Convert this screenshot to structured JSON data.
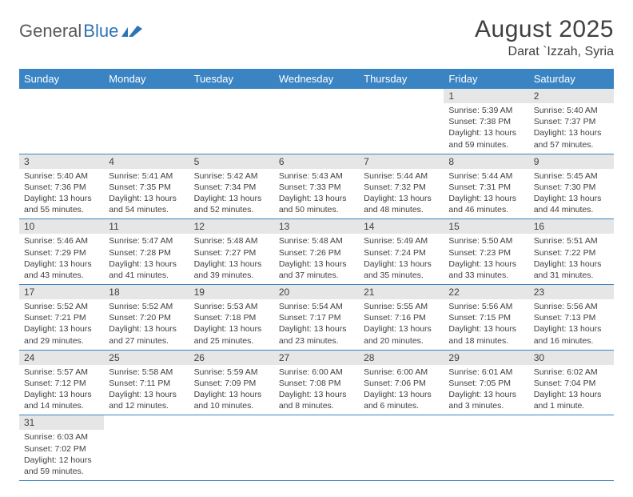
{
  "logo": {
    "word1": "General",
    "word2": "Blue"
  },
  "title": "August 2025",
  "location": "Darat `Izzah, Syria",
  "colors": {
    "header_bg": "#3a84c4",
    "header_text": "#ffffff",
    "daynum_bg": "#e6e6e6",
    "text": "#404040",
    "border": "#3a84c4",
    "logo_gray": "#5a5a5a",
    "logo_blue": "#2e74b5",
    "background": "#ffffff"
  },
  "typography": {
    "title_fontsize": 30,
    "location_fontsize": 16,
    "weekday_fontsize": 13,
    "daynum_fontsize": 12,
    "content_fontsize": 10.5
  },
  "weekdays": [
    "Sunday",
    "Monday",
    "Tuesday",
    "Wednesday",
    "Thursday",
    "Friday",
    "Saturday"
  ],
  "weeks": [
    [
      null,
      null,
      null,
      null,
      null,
      {
        "n": "1",
        "sunrise": "Sunrise: 5:39 AM",
        "sunset": "Sunset: 7:38 PM",
        "daylight": "Daylight: 13 hours and 59 minutes."
      },
      {
        "n": "2",
        "sunrise": "Sunrise: 5:40 AM",
        "sunset": "Sunset: 7:37 PM",
        "daylight": "Daylight: 13 hours and 57 minutes."
      }
    ],
    [
      {
        "n": "3",
        "sunrise": "Sunrise: 5:40 AM",
        "sunset": "Sunset: 7:36 PM",
        "daylight": "Daylight: 13 hours and 55 minutes."
      },
      {
        "n": "4",
        "sunrise": "Sunrise: 5:41 AM",
        "sunset": "Sunset: 7:35 PM",
        "daylight": "Daylight: 13 hours and 54 minutes."
      },
      {
        "n": "5",
        "sunrise": "Sunrise: 5:42 AM",
        "sunset": "Sunset: 7:34 PM",
        "daylight": "Daylight: 13 hours and 52 minutes."
      },
      {
        "n": "6",
        "sunrise": "Sunrise: 5:43 AM",
        "sunset": "Sunset: 7:33 PM",
        "daylight": "Daylight: 13 hours and 50 minutes."
      },
      {
        "n": "7",
        "sunrise": "Sunrise: 5:44 AM",
        "sunset": "Sunset: 7:32 PM",
        "daylight": "Daylight: 13 hours and 48 minutes."
      },
      {
        "n": "8",
        "sunrise": "Sunrise: 5:44 AM",
        "sunset": "Sunset: 7:31 PM",
        "daylight": "Daylight: 13 hours and 46 minutes."
      },
      {
        "n": "9",
        "sunrise": "Sunrise: 5:45 AM",
        "sunset": "Sunset: 7:30 PM",
        "daylight": "Daylight: 13 hours and 44 minutes."
      }
    ],
    [
      {
        "n": "10",
        "sunrise": "Sunrise: 5:46 AM",
        "sunset": "Sunset: 7:29 PM",
        "daylight": "Daylight: 13 hours and 43 minutes."
      },
      {
        "n": "11",
        "sunrise": "Sunrise: 5:47 AM",
        "sunset": "Sunset: 7:28 PM",
        "daylight": "Daylight: 13 hours and 41 minutes."
      },
      {
        "n": "12",
        "sunrise": "Sunrise: 5:48 AM",
        "sunset": "Sunset: 7:27 PM",
        "daylight": "Daylight: 13 hours and 39 minutes."
      },
      {
        "n": "13",
        "sunrise": "Sunrise: 5:48 AM",
        "sunset": "Sunset: 7:26 PM",
        "daylight": "Daylight: 13 hours and 37 minutes."
      },
      {
        "n": "14",
        "sunrise": "Sunrise: 5:49 AM",
        "sunset": "Sunset: 7:24 PM",
        "daylight": "Daylight: 13 hours and 35 minutes."
      },
      {
        "n": "15",
        "sunrise": "Sunrise: 5:50 AM",
        "sunset": "Sunset: 7:23 PM",
        "daylight": "Daylight: 13 hours and 33 minutes."
      },
      {
        "n": "16",
        "sunrise": "Sunrise: 5:51 AM",
        "sunset": "Sunset: 7:22 PM",
        "daylight": "Daylight: 13 hours and 31 minutes."
      }
    ],
    [
      {
        "n": "17",
        "sunrise": "Sunrise: 5:52 AM",
        "sunset": "Sunset: 7:21 PM",
        "daylight": "Daylight: 13 hours and 29 minutes."
      },
      {
        "n": "18",
        "sunrise": "Sunrise: 5:52 AM",
        "sunset": "Sunset: 7:20 PM",
        "daylight": "Daylight: 13 hours and 27 minutes."
      },
      {
        "n": "19",
        "sunrise": "Sunrise: 5:53 AM",
        "sunset": "Sunset: 7:18 PM",
        "daylight": "Daylight: 13 hours and 25 minutes."
      },
      {
        "n": "20",
        "sunrise": "Sunrise: 5:54 AM",
        "sunset": "Sunset: 7:17 PM",
        "daylight": "Daylight: 13 hours and 23 minutes."
      },
      {
        "n": "21",
        "sunrise": "Sunrise: 5:55 AM",
        "sunset": "Sunset: 7:16 PM",
        "daylight": "Daylight: 13 hours and 20 minutes."
      },
      {
        "n": "22",
        "sunrise": "Sunrise: 5:56 AM",
        "sunset": "Sunset: 7:15 PM",
        "daylight": "Daylight: 13 hours and 18 minutes."
      },
      {
        "n": "23",
        "sunrise": "Sunrise: 5:56 AM",
        "sunset": "Sunset: 7:13 PM",
        "daylight": "Daylight: 13 hours and 16 minutes."
      }
    ],
    [
      {
        "n": "24",
        "sunrise": "Sunrise: 5:57 AM",
        "sunset": "Sunset: 7:12 PM",
        "daylight": "Daylight: 13 hours and 14 minutes."
      },
      {
        "n": "25",
        "sunrise": "Sunrise: 5:58 AM",
        "sunset": "Sunset: 7:11 PM",
        "daylight": "Daylight: 13 hours and 12 minutes."
      },
      {
        "n": "26",
        "sunrise": "Sunrise: 5:59 AM",
        "sunset": "Sunset: 7:09 PM",
        "daylight": "Daylight: 13 hours and 10 minutes."
      },
      {
        "n": "27",
        "sunrise": "Sunrise: 6:00 AM",
        "sunset": "Sunset: 7:08 PM",
        "daylight": "Daylight: 13 hours and 8 minutes."
      },
      {
        "n": "28",
        "sunrise": "Sunrise: 6:00 AM",
        "sunset": "Sunset: 7:06 PM",
        "daylight": "Daylight: 13 hours and 6 minutes."
      },
      {
        "n": "29",
        "sunrise": "Sunrise: 6:01 AM",
        "sunset": "Sunset: 7:05 PM",
        "daylight": "Daylight: 13 hours and 3 minutes."
      },
      {
        "n": "30",
        "sunrise": "Sunrise: 6:02 AM",
        "sunset": "Sunset: 7:04 PM",
        "daylight": "Daylight: 13 hours and 1 minute."
      }
    ],
    [
      {
        "n": "31",
        "sunrise": "Sunrise: 6:03 AM",
        "sunset": "Sunset: 7:02 PM",
        "daylight": "Daylight: 12 hours and 59 minutes."
      },
      null,
      null,
      null,
      null,
      null,
      null
    ]
  ]
}
